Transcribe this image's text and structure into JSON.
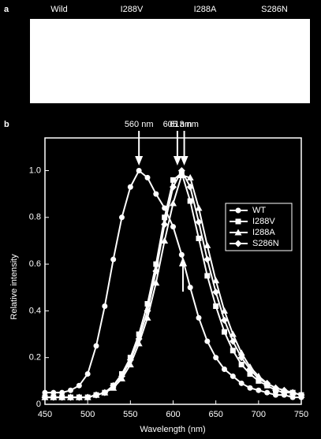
{
  "panel_a": {
    "label": "a",
    "columns": [
      "Wild",
      "I288V",
      "I288A",
      "S286N"
    ]
  },
  "chart_data": {
    "type": "line",
    "panel_label": "b",
    "xlabel": "Wavelength (nm)",
    "ylabel": "Relative intensity",
    "xlim": [
      450,
      750
    ],
    "ylim": [
      0,
      1.14
    ],
    "xticks": [
      450,
      500,
      550,
      600,
      650,
      700,
      750
    ],
    "yticks": [
      0,
      0.2,
      0.4,
      0.6,
      0.8,
      {
        "value": 1,
        "label": "1.0"
      }
    ],
    "legend": "upper right",
    "annotations": [
      {
        "label": "560 nm",
        "x": 560
      },
      {
        "label": "605 nm",
        "x": 605
      },
      {
        "label": "613 nm",
        "x": 613
      }
    ],
    "x": [
      450,
      460,
      470,
      480,
      490,
      500,
      510,
      520,
      530,
      540,
      550,
      560,
      570,
      580,
      590,
      600,
      610,
      620,
      630,
      640,
      650,
      660,
      670,
      680,
      690,
      700,
      710,
      720,
      730,
      740,
      750
    ],
    "series": [
      {
        "name": "WT",
        "color": "#ffffff",
        "marker": "circle",
        "values": [
          0.05,
          0.05,
          0.05,
          0.06,
          0.08,
          0.13,
          0.25,
          0.42,
          0.62,
          0.8,
          0.93,
          1.0,
          0.97,
          0.9,
          0.84,
          0.76,
          0.64,
          0.5,
          0.37,
          0.27,
          0.2,
          0.15,
          0.12,
          0.09,
          0.07,
          0.06,
          0.05,
          0.04,
          0.04,
          0.03,
          0.03
        ]
      },
      {
        "name": "I288V",
        "color": "#ffffff",
        "marker": "square",
        "values": [
          0.03,
          0.03,
          0.03,
          0.03,
          0.03,
          0.03,
          0.04,
          0.05,
          0.08,
          0.13,
          0.2,
          0.3,
          0.43,
          0.6,
          0.8,
          0.96,
          0.99,
          0.87,
          0.71,
          0.55,
          0.42,
          0.31,
          0.23,
          0.17,
          0.13,
          0.1,
          0.08,
          0.06,
          0.05,
          0.05,
          0.04
        ]
      },
      {
        "name": "I288A",
        "color": "#ffffff",
        "marker": "triangle",
        "values": [
          0.03,
          0.03,
          0.03,
          0.03,
          0.03,
          0.03,
          0.04,
          0.05,
          0.07,
          0.11,
          0.17,
          0.26,
          0.37,
          0.52,
          0.7,
          0.86,
          0.98,
          0.97,
          0.84,
          0.68,
          0.53,
          0.4,
          0.3,
          0.22,
          0.16,
          0.12,
          0.09,
          0.07,
          0.06,
          0.05,
          0.04
        ]
      },
      {
        "name": "S286N",
        "color": "#ffffff",
        "marker": "diamond",
        "values": [
          0.03,
          0.03,
          0.03,
          0.03,
          0.03,
          0.03,
          0.04,
          0.05,
          0.08,
          0.12,
          0.19,
          0.28,
          0.4,
          0.57,
          0.77,
          0.93,
          1.0,
          0.93,
          0.78,
          0.62,
          0.48,
          0.36,
          0.27,
          0.2,
          0.15,
          0.11,
          0.09,
          0.07,
          0.06,
          0.05,
          0.04
        ]
      }
    ]
  }
}
